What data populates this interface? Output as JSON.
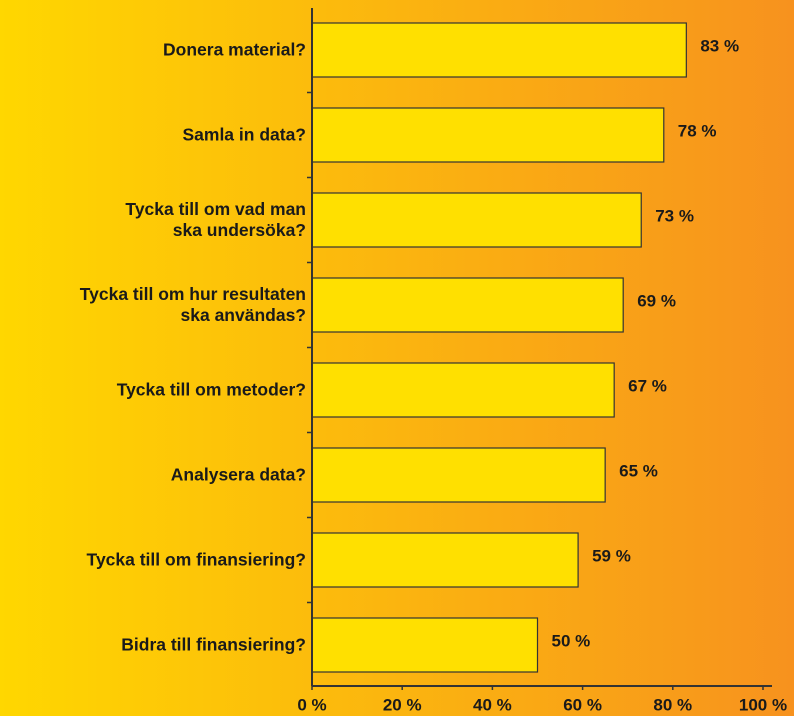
{
  "chart_data": {
    "type": "bar",
    "orientation": "horizontal",
    "categories": [
      "Donera material?",
      "Samla in data?",
      "Tycka till om vad man\nska undersöka?",
      "Tycka till om hur resultaten\nska användas?",
      "Tycka till om metoder?",
      "Analysera data?",
      "Tycka till om finansiering?",
      "Bidra till finansiering?"
    ],
    "values": [
      83,
      78,
      73,
      69,
      67,
      65,
      59,
      50
    ],
    "value_labels": [
      "83 %",
      "78 %",
      "73 %",
      "69 %",
      "67 %",
      "65 %",
      "59 %",
      "50 %"
    ],
    "color": "#ffe000",
    "xlim": [
      0,
      100
    ],
    "xticks": [
      {
        "value": 0,
        "label": "0 %"
      },
      {
        "value": 20,
        "label": "20 %"
      },
      {
        "value": 40,
        "label": "40 %"
      },
      {
        "value": 60,
        "label": "60 %"
      },
      {
        "value": 80,
        "label": "80 %"
      },
      {
        "value": 100,
        "label": "100 %"
      }
    ],
    "grid": false
  }
}
